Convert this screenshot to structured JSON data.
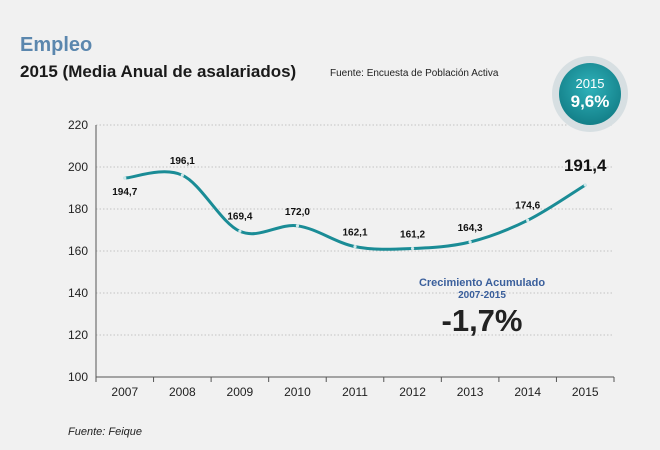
{
  "title": "Empleo",
  "subtitle": "2015 (Media Anual de asalariados)",
  "source_top": "Fuente: Encuesta de Población Activa",
  "source_bottom": "Fuente: Feique",
  "badge": {
    "year": "2015",
    "value": "9,6%"
  },
  "growth": {
    "label": "Crecimiento Acumulado",
    "period": "2007-2015",
    "value": "-1,7%"
  },
  "colors": {
    "line": "#1a8c96",
    "growth_label": "#3a5f9c",
    "badge_fill": "#1c97a0"
  },
  "chart_data": {
    "type": "line",
    "title": "Empleo",
    "categories": [
      "2007",
      "2008",
      "2009",
      "2010",
      "2011",
      "2012",
      "2013",
      "2014",
      "2015"
    ],
    "values": [
      194.7,
      196.1,
      169.4,
      172.0,
      162.1,
      161.2,
      164.3,
      174.6,
      191.4
    ],
    "labels": [
      "194,7",
      "196,1",
      "169,4",
      "172,0",
      "162,1",
      "161,2",
      "164,3",
      "174,6",
      "191,4"
    ],
    "yticks": [
      100,
      120,
      140,
      160,
      180,
      200,
      220
    ],
    "ylim": [
      100,
      220
    ],
    "xlabel": "",
    "ylabel": "",
    "grid": true
  }
}
